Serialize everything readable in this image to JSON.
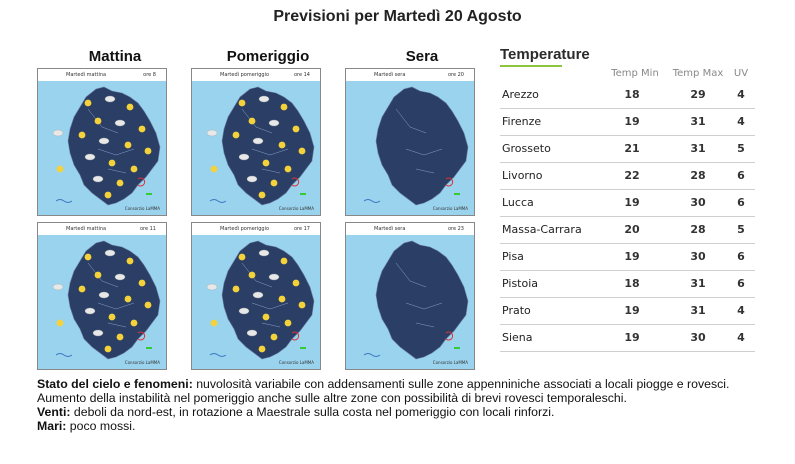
{
  "title": "Previsioni per Martedì 20 Agosto",
  "periods": [
    "Mattina",
    "Pomeriggio",
    "Sera"
  ],
  "maps": [
    {
      "label": "Martedì mattina",
      "hour": "ore 8",
      "credit": "Consorzio LaMMA",
      "type": "day"
    },
    {
      "label": "Martedì pomeriggio",
      "hour": "ore 14",
      "credit": "Consorzio LaMMA",
      "type": "day"
    },
    {
      "label": "Martedì sera",
      "hour": "ore 20",
      "credit": "Consorzio LaMMA",
      "type": "night"
    },
    {
      "label": "Martedì mattina",
      "hour": "ore 11",
      "credit": "Consorzio LaMMA",
      "type": "day"
    },
    {
      "label": "Martedì pomeriggio",
      "hour": "ore 17",
      "credit": "Consorzio LaMMA",
      "type": "day"
    },
    {
      "label": "Martedì sera",
      "hour": "ore 23",
      "credit": "Consorzio LaMMA",
      "type": "night"
    }
  ],
  "temperature": {
    "heading": "Temperature",
    "columns": [
      "Temp Min",
      "Temp Max",
      "UV"
    ],
    "rows": [
      {
        "city": "Arezzo",
        "min": "18",
        "max": "29",
        "uv": "4"
      },
      {
        "city": "Firenze",
        "min": "19",
        "max": "31",
        "uv": "4"
      },
      {
        "city": "Grosseto",
        "min": "21",
        "max": "31",
        "uv": "5"
      },
      {
        "city": "Livorno",
        "min": "22",
        "max": "28",
        "uv": "6"
      },
      {
        "city": "Lucca",
        "min": "19",
        "max": "30",
        "uv": "6"
      },
      {
        "city": "Massa-Carrara",
        "min": "20",
        "max": "28",
        "uv": "5"
      },
      {
        "city": "Pisa",
        "min": "19",
        "max": "30",
        "uv": "6"
      },
      {
        "city": "Pistoia",
        "min": "18",
        "max": "31",
        "uv": "6"
      },
      {
        "city": "Prato",
        "min": "19",
        "max": "31",
        "uv": "4"
      },
      {
        "city": "Siena",
        "min": "19",
        "max": "30",
        "uv": "4"
      }
    ]
  },
  "description": {
    "sky_label": "Stato del cielo e fenomeni:",
    "sky_text": " nuvolosità variabile con addensamenti sulle zone appenniniche associati a locali piogge e rovesci. Aumento della instabilità nel pomeriggio anche sulle altre zone con possibilità di brevi rovesci temporaleschi.",
    "wind_label": "Venti:",
    "wind_text": " deboli da nord-est, in rotazione a Maestrale sulla costa nel pomeriggio con locali rinforzi.",
    "sea_label": "Mari:",
    "sea_text": " poco mossi."
  },
  "colors": {
    "sea": "#9ad3ee",
    "land": "#2b3f66",
    "accent": "#8cc63f",
    "sun": "#f5d23a"
  }
}
